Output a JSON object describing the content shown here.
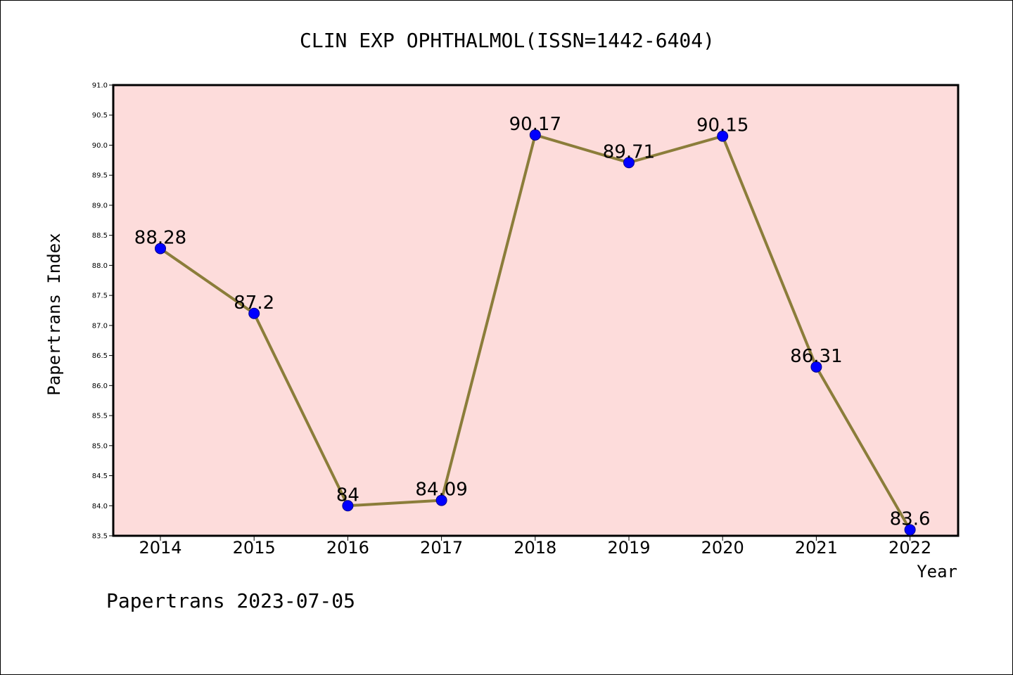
{
  "chart_data": {
    "type": "line",
    "title": "CLIN EXP OPHTHALMOL(ISSN=1442-6404)",
    "xlabel": "Year",
    "ylabel": "Papertrans Index",
    "categories": [
      "2014",
      "2015",
      "2016",
      "2017",
      "2018",
      "2019",
      "2020",
      "2021",
      "2022"
    ],
    "series": [
      {
        "values": [
          88.28,
          87.2,
          84,
          84.09,
          90.17,
          89.71,
          90.15,
          86.31,
          83.6
        ],
        "point_labels": [
          "88.28",
          "87.2",
          "84",
          "84.09",
          "90.17",
          "89.71",
          "90.15",
          "86.31",
          "83.6"
        ]
      }
    ],
    "ylim": [
      83.5,
      91.0
    ],
    "yticks": [
      "83.5",
      "84.0",
      "84.5",
      "85.0",
      "85.5",
      "86.0",
      "86.5",
      "87.0",
      "87.5",
      "88.0",
      "88.5",
      "89.0",
      "89.5",
      "90.0",
      "90.5",
      "91.0"
    ],
    "grid": false,
    "colors": {
      "plot_background": "#fddcdb",
      "line": "#8b7d3a",
      "marker": "#0000ff"
    }
  },
  "footer": "Papertrans 2023-07-05"
}
